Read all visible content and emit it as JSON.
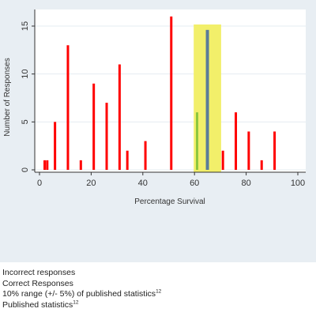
{
  "colors": {
    "panel_bg": "#e8eef3",
    "plot_bg": "#ffffff",
    "gridline": "#e6ecf0",
    "incorrect": "#ff0000",
    "correct": "#8cc63f",
    "range_band": "#f2ef6a",
    "published": "#5b7c99"
  },
  "chart_data": {
    "type": "bar",
    "xlabel": "Percentage Survival",
    "ylabel": "Number of Responses",
    "xlim": [
      0,
      100
    ],
    "ylim": [
      0,
      16
    ],
    "xticks": [
      0,
      20,
      40,
      60,
      80,
      100
    ],
    "yticks": [
      0,
      5,
      10,
      15
    ],
    "grid": true,
    "series": [
      {
        "name": "Incorrect responses",
        "color": "#ff0000",
        "x": [
          2,
          3,
          6,
          11,
          16,
          21,
          26,
          31,
          34,
          41,
          51,
          71,
          76,
          81,
          86,
          91
        ],
        "y": [
          1,
          1,
          5,
          13,
          1,
          9,
          7,
          11,
          2,
          3,
          16,
          2,
          6,
          4,
          1,
          4
        ]
      },
      {
        "name": "Correct Responses",
        "color": "#8cc63f",
        "x": [
          61
        ],
        "y": [
          6
        ]
      }
    ],
    "range_band": {
      "label": "10% range (+/- 5%) of published statistics",
      "x0": 60,
      "x1": 70,
      "color": "#f2ef6a"
    },
    "published_line": {
      "label": "Published statistics",
      "x": 65,
      "y": 14.6,
      "color": "#5b7c99"
    }
  },
  "legend": {
    "items": [
      {
        "text": "Incorrect responses",
        "sup": ""
      },
      {
        "text": "Correct Responses",
        "sup": ""
      },
      {
        "text": "10% range (+/- 5%) of published statistics",
        "sup": "12"
      },
      {
        "text": "Published statistics",
        "sup": "12"
      }
    ]
  }
}
